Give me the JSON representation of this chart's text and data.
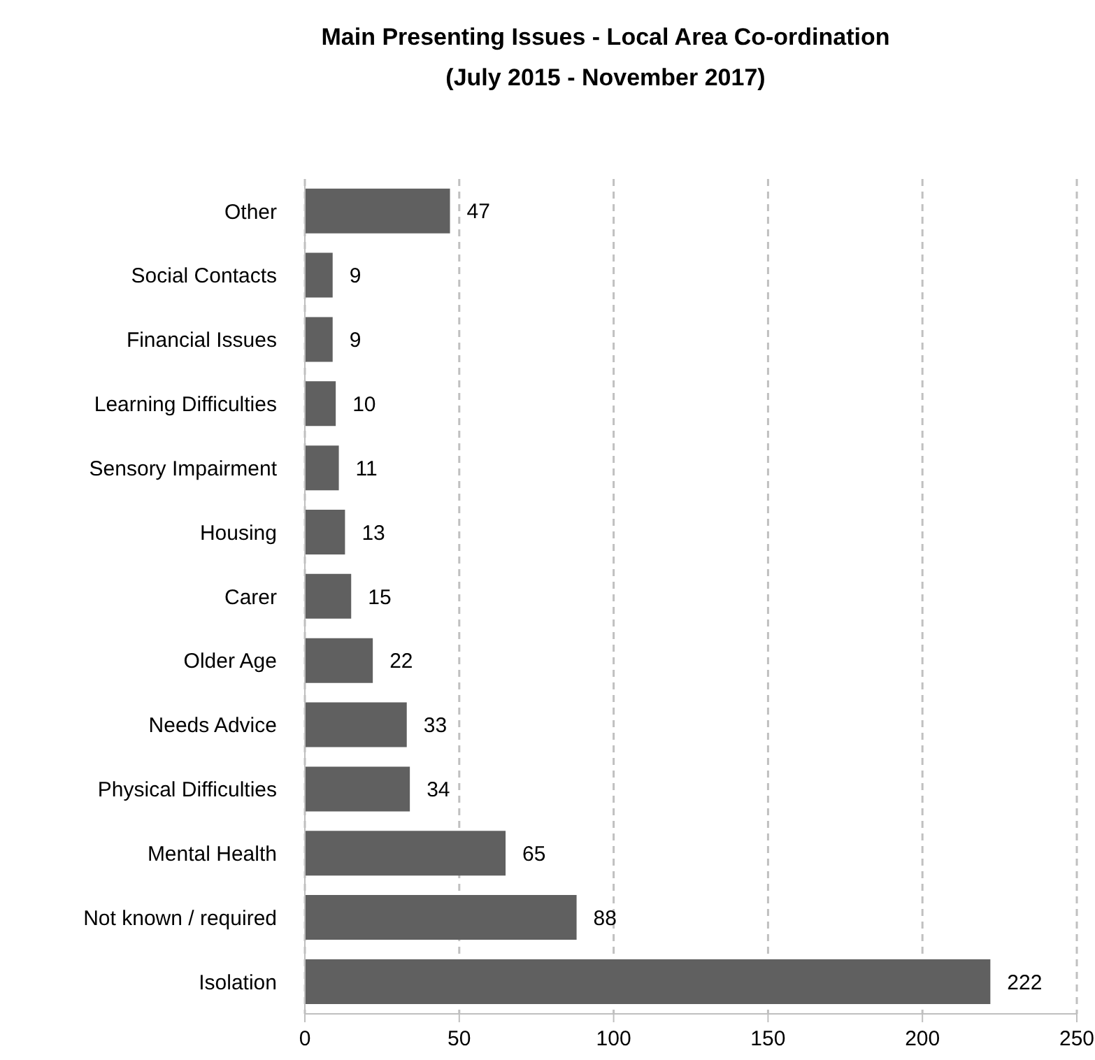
{
  "chart_data": {
    "type": "bar",
    "orientation": "horizontal",
    "title": "Main Presenting Issues - Local Area Co-ordination\n(July 2015 - November 2017)",
    "categories": [
      "Other",
      "Social Contacts",
      "Financial Issues",
      "Learning Difficulties",
      "Sensory Impairment",
      "Housing",
      "Carer",
      "Older Age",
      "Needs Advice",
      "Physical Difficulties",
      "Mental Health",
      "Not known / required",
      "Isolation"
    ],
    "values": [
      47,
      9,
      9,
      10,
      11,
      13,
      15,
      22,
      33,
      34,
      65,
      88,
      222
    ],
    "color": "#606060",
    "xlim": [
      0,
      250
    ],
    "xticks": [
      0,
      50,
      100,
      150,
      200,
      250
    ],
    "grid": "x",
    "data_labels": true
  }
}
